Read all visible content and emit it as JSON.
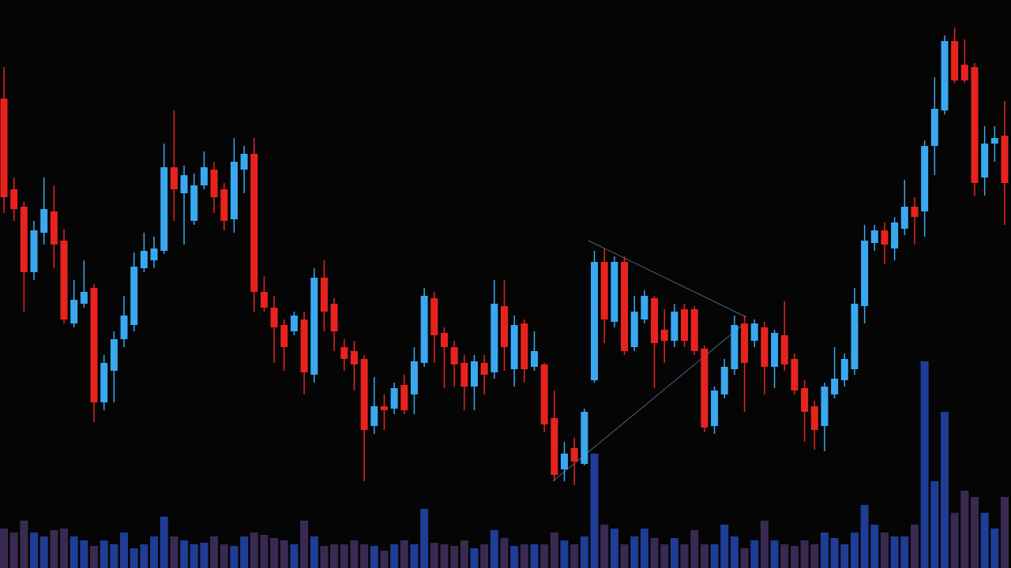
{
  "chart_data": {
    "type": "candlestick",
    "open": [
      595,
      480,
      458,
      375,
      425,
      452,
      415,
      310,
      335,
      355,
      210,
      250,
      290,
      308,
      380,
      390,
      402,
      508,
      475,
      440,
      485,
      505,
      480,
      442,
      505,
      525,
      350,
      330,
      308,
      300,
      315,
      245,
      368,
      335,
      280,
      275,
      265,
      180,
      205,
      202,
      232,
      220,
      260,
      342,
      298,
      280,
      260,
      230,
      260,
      248,
      332,
      252,
      310,
      255,
      258,
      190,
      125,
      152,
      132,
      238,
      388,
      312,
      388,
      280,
      315,
      342,
      302,
      288,
      328,
      328,
      278,
      180,
      220,
      252,
      310,
      288,
      305,
      255,
      295,
      265,
      228,
      205,
      180,
      220,
      238,
      252,
      332,
      412,
      428,
      405,
      430,
      458,
      452,
      535,
      580,
      668,
      638,
      635,
      495,
      538,
      548
    ],
    "high": [
      635,
      495,
      465,
      440,
      495,
      485,
      430,
      365,
      390,
      360,
      270,
      300,
      345,
      400,
      425,
      420,
      538,
      580,
      510,
      500,
      528,
      515,
      488,
      545,
      535,
      545,
      370,
      345,
      315,
      325,
      325,
      380,
      390,
      342,
      290,
      288,
      270,
      242,
      220,
      235,
      245,
      280,
      355,
      350,
      305,
      288,
      270,
      270,
      270,
      365,
      365,
      320,
      315,
      300,
      260,
      225,
      160,
      165,
      202,
      402,
      405,
      395,
      395,
      345,
      352,
      345,
      328,
      335,
      335,
      332,
      282,
      230,
      265,
      320,
      320,
      315,
      312,
      302,
      338,
      272,
      238,
      212,
      235,
      280,
      272,
      355,
      435,
      435,
      438,
      445,
      492,
      470,
      542,
      622,
      675,
      685,
      670,
      640,
      560,
      560,
      592
    ],
    "low": [
      450,
      440,
      325,
      365,
      410,
      380,
      310,
      305,
      330,
      185,
      200,
      210,
      280,
      300,
      375,
      380,
      398,
      440,
      410,
      435,
      480,
      450,
      428,
      425,
      475,
      325,
      325,
      260,
      250,
      295,
      220,
      235,
      300,
      275,
      250,
      225,
      110,
      170,
      175,
      195,
      195,
      195,
      255,
      260,
      228,
      230,
      200,
      200,
      220,
      240,
      250,
      230,
      235,
      250,
      172,
      110,
      110,
      105,
      130,
      235,
      285,
      305,
      270,
      275,
      310,
      228,
      260,
      280,
      280,
      270,
      172,
      170,
      215,
      245,
      198,
      280,
      220,
      228,
      250,
      220,
      160,
      150,
      148,
      215,
      230,
      245,
      310,
      402,
      385,
      390,
      422,
      410,
      420,
      498,
      575,
      615,
      615,
      472,
      472,
      515,
      435
    ],
    "close": [
      470,
      455,
      375,
      428,
      455,
      410,
      315,
      340,
      350,
      210,
      260,
      290,
      320,
      382,
      402,
      405,
      508,
      480,
      498,
      485,
      508,
      470,
      440,
      515,
      525,
      350,
      330,
      305,
      280,
      320,
      248,
      368,
      325,
      300,
      265,
      258,
      175,
      205,
      200,
      228,
      200,
      262,
      345,
      295,
      280,
      258,
      230,
      262,
      245,
      335,
      280,
      308,
      252,
      275,
      182,
      118,
      145,
      135,
      198,
      388,
      315,
      388,
      275,
      325,
      345,
      285,
      288,
      325,
      288,
      275,
      178,
      225,
      255,
      308,
      260,
      310,
      255,
      298,
      258,
      225,
      198,
      175,
      230,
      240,
      265,
      335,
      415,
      428,
      410,
      438,
      458,
      445,
      535,
      582,
      668,
      618,
      618,
      488,
      538,
      545,
      488
    ],
    "volume": [
      50,
      45,
      60,
      45,
      40,
      48,
      50,
      40,
      35,
      28,
      35,
      30,
      45,
      25,
      30,
      40,
      65,
      40,
      35,
      30,
      32,
      40,
      30,
      28,
      40,
      45,
      42,
      38,
      35,
      30,
      60,
      40,
      28,
      30,
      30,
      35,
      30,
      28,
      22,
      30,
      35,
      30,
      75,
      32,
      30,
      28,
      35,
      25,
      30,
      48,
      38,
      28,
      30,
      30,
      30,
      45,
      35,
      30,
      40,
      145,
      55,
      50,
      30,
      40,
      50,
      38,
      30,
      38,
      30,
      48,
      30,
      30,
      55,
      40,
      25,
      35,
      60,
      35,
      30,
      28,
      35,
      30,
      45,
      38,
      30,
      45,
      80,
      55,
      45,
      40,
      40,
      55,
      262,
      110,
      198,
      70,
      98,
      90,
      70,
      50,
      90
    ],
    "up_color": "#3aa8f0",
    "down_color": "#e8231f",
    "volume_up_color": "#1f3d96",
    "volume_down_color": "#3a2a52",
    "ylim": [
      0,
      720
    ],
    "y2lim": [
      0,
      720
    ],
    "background": "#050505"
  }
}
